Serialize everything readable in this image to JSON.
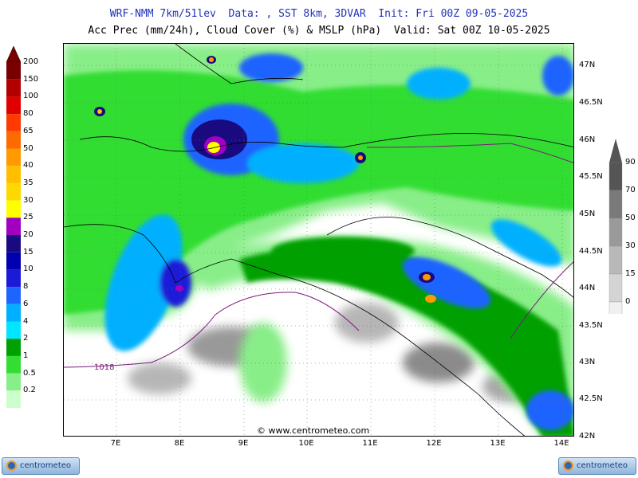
{
  "header": {
    "line1": "WRF-NMM 7km/51lev  Data: , SST 8km, 3DVAR  Init: Fri 00Z 09-05-2025",
    "line2": "Acc Prec (mm/24h), Cloud Cover (%) & MSLP (hPa)  Valid: Sat 00Z 10-05-2025"
  },
  "axes": {
    "lat_labels": [
      "47N",
      "46.5N",
      "46N",
      "45.5N",
      "45N",
      "44.5N",
      "44N",
      "43.5N",
      "43N",
      "42.5N",
      "42N"
    ],
    "lon_labels": [
      "7E",
      "8E",
      "9E",
      "10E",
      "11E",
      "12E",
      "13E",
      "14E"
    ]
  },
  "precip_scale": {
    "labels": [
      "200",
      "150",
      "100",
      "80",
      "65",
      "50",
      "40",
      "35",
      "30",
      "25",
      "20",
      "15",
      "10",
      "8",
      "6",
      "4",
      "2",
      "1",
      "0.5",
      "0.2"
    ],
    "colors": [
      "#7a0000",
      "#b20000",
      "#e00000",
      "#ff3a00",
      "#ff6a00",
      "#ff9a00",
      "#ffbe00",
      "#ffd800",
      "#ffff00",
      "#a000c0",
      "#1a0a80",
      "#0000b0",
      "#1a1ad8",
      "#1e64ff",
      "#00b0ff",
      "#00e6ff",
      "#00a000",
      "#33dd33",
      "#88ee88",
      "#ccffcc"
    ]
  },
  "cloud_scale": {
    "labels": [
      "90",
      "70",
      "50",
      "30",
      "15",
      "0"
    ],
    "colors": [
      "#555555",
      "#7a7a7a",
      "#9a9a9a",
      "#b8b8b8",
      "#d4d4d4",
      "#f0f0f0"
    ]
  },
  "isobar_label": "1018",
  "credit": "© www.centrometeo.com",
  "logos": {
    "left": "centrometeo",
    "right": "centrometeo"
  }
}
